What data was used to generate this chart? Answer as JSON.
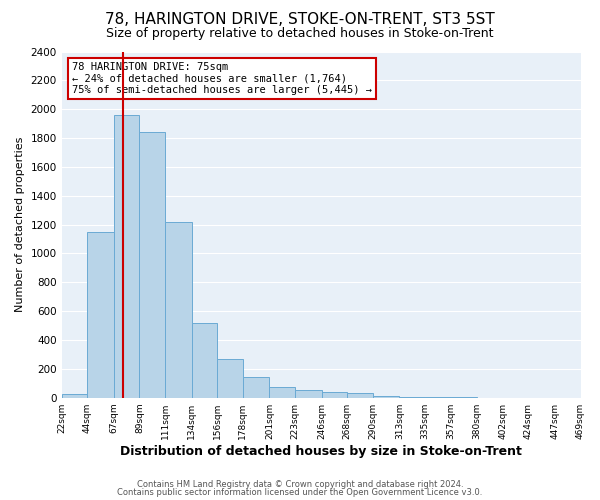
{
  "title": "78, HARINGTON DRIVE, STOKE-ON-TRENT, ST3 5ST",
  "subtitle": "Size of property relative to detached houses in Stoke-on-Trent",
  "xlabel": "Distribution of detached houses by size in Stoke-on-Trent",
  "ylabel": "Number of detached properties",
  "bar_edges": [
    22,
    44,
    67,
    89,
    111,
    134,
    156,
    178,
    201,
    223,
    246,
    268,
    290,
    313,
    335,
    357,
    380,
    402,
    424,
    447,
    469
  ],
  "bar_heights": [
    25,
    1150,
    1960,
    1840,
    1220,
    520,
    265,
    145,
    75,
    50,
    40,
    35,
    15,
    5,
    3,
    2,
    1,
    1,
    1,
    1
  ],
  "bar_color": "#b8d4e8",
  "bar_edge_color": "#6aaad4",
  "vline_x": 75,
  "vline_color": "#cc0000",
  "ylim": [
    0,
    2400
  ],
  "yticks": [
    0,
    200,
    400,
    600,
    800,
    1000,
    1200,
    1400,
    1600,
    1800,
    2000,
    2200,
    2400
  ],
  "tick_labels": [
    "22sqm",
    "44sqm",
    "67sqm",
    "89sqm",
    "111sqm",
    "134sqm",
    "156sqm",
    "178sqm",
    "201sqm",
    "223sqm",
    "246sqm",
    "268sqm",
    "290sqm",
    "313sqm",
    "335sqm",
    "357sqm",
    "380sqm",
    "402sqm",
    "424sqm",
    "447sqm",
    "469sqm"
  ],
  "annotation_title": "78 HARINGTON DRIVE: 75sqm",
  "annotation_line1": "← 24% of detached houses are smaller (1,764)",
  "annotation_line2": "75% of semi-detached houses are larger (5,445) →",
  "footer1": "Contains HM Land Registry data © Crown copyright and database right 2024.",
  "footer2": "Contains public sector information licensed under the Open Government Licence v3.0.",
  "bg_color": "#ffffff",
  "plot_bg_color": "#e8f0f8",
  "grid_color": "#ffffff",
  "title_fontsize": 11,
  "subtitle_fontsize": 9,
  "xlabel_fontsize": 9,
  "ylabel_fontsize": 8,
  "annotation_box_color": "#ffffff",
  "annotation_box_edge": "#cc0000"
}
